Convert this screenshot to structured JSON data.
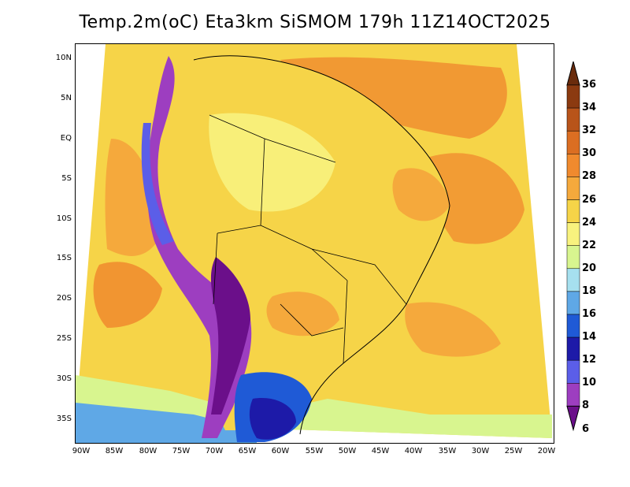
{
  "title": "Temp.2m(oC) Eta3km SiSMOM 179h 11Z14OCT2025",
  "lat_labels": [
    "10N",
    "5N",
    "EQ",
    "5S",
    "10S",
    "15S",
    "20S",
    "25S",
    "30S",
    "35S"
  ],
  "lon_labels": [
    "90W",
    "85W",
    "80W",
    "75W",
    "70W",
    "65W",
    "60W",
    "55W",
    "50W",
    "45W",
    "40W",
    "35W",
    "30W",
    "25W",
    "20W"
  ],
  "colorbar": {
    "labels": [
      "36",
      "34",
      "32",
      "30",
      "28",
      "26",
      "24",
      "22",
      "20",
      "18",
      "16",
      "14",
      "12",
      "10",
      "8",
      "6"
    ],
    "colors": [
      "#6a2c0c",
      "#8b3a10",
      "#b8541a",
      "#db6e22",
      "#f08a2e",
      "#f5a93c",
      "#f6d448",
      "#f8f27e",
      "#d8f58f",
      "#a6e0ef",
      "#5fa8e6",
      "#1f5ad6",
      "#1d1aa8",
      "#5b5ee8",
      "#9d3ec0",
      "#6b0f8a"
    ]
  }
}
